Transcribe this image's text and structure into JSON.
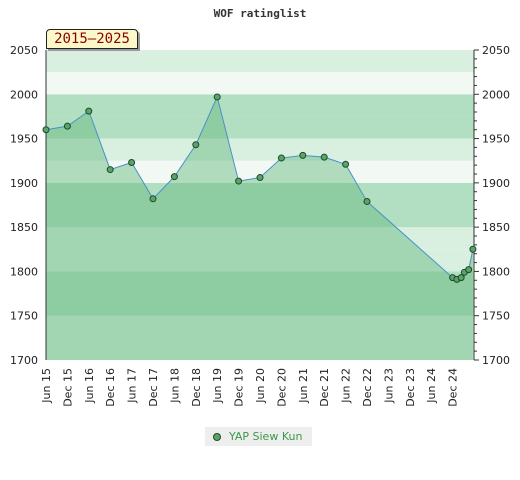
{
  "chart_data": {
    "type": "area",
    "title": "WOF ratinglist",
    "period_label": "2015–2025",
    "ylim": [
      1700,
      2050
    ],
    "y_ticks": [
      1700,
      1750,
      1800,
      1850,
      1900,
      1950,
      2000,
      2050
    ],
    "x_tick_labels": [
      "Jun 15",
      "Dec 15",
      "Jun 16",
      "Dec 16",
      "Jun 17",
      "Dec 17",
      "Jun 18",
      "Dec 18",
      "Jun 19",
      "Dec 19",
      "Jun 20",
      "Dec 20",
      "Jun 21",
      "Dec 21",
      "Jun 22",
      "Dec 22",
      "Jun 23",
      "Dec 23",
      "Jun 24",
      "Dec 24"
    ],
    "x_range": [
      0,
      20
    ],
    "series": [
      {
        "name": "YAP Siew Kun",
        "points": [
          [
            0,
            1960
          ],
          [
            1,
            1964
          ],
          [
            2,
            1981
          ],
          [
            3,
            1915
          ],
          [
            4,
            1923
          ],
          [
            5,
            1882
          ],
          [
            6,
            1907
          ],
          [
            7,
            1943
          ],
          [
            8,
            1997
          ],
          [
            9,
            1902
          ],
          [
            10,
            1906
          ],
          [
            11,
            1928
          ],
          [
            12,
            1931
          ],
          [
            13,
            1929
          ],
          [
            14,
            1921
          ],
          [
            15,
            1879
          ],
          [
            19.0,
            1793
          ],
          [
            19.2,
            1791
          ],
          [
            19.4,
            1793
          ],
          [
            19.55,
            1799
          ],
          [
            19.75,
            1802
          ],
          [
            19.95,
            1825
          ]
        ]
      }
    ],
    "colors": {
      "band_dark": "#b2dfc2",
      "band_light": "#d9efe0",
      "band_white": "#f2f9f4",
      "area_fill": "#5fb77a",
      "line": "#4a90c8",
      "marker": "#5aa36a",
      "marker_stroke": "#1f4a28"
    },
    "legend": {
      "label": "YAP Siew Kun",
      "placement": "bottom-center"
    }
  }
}
